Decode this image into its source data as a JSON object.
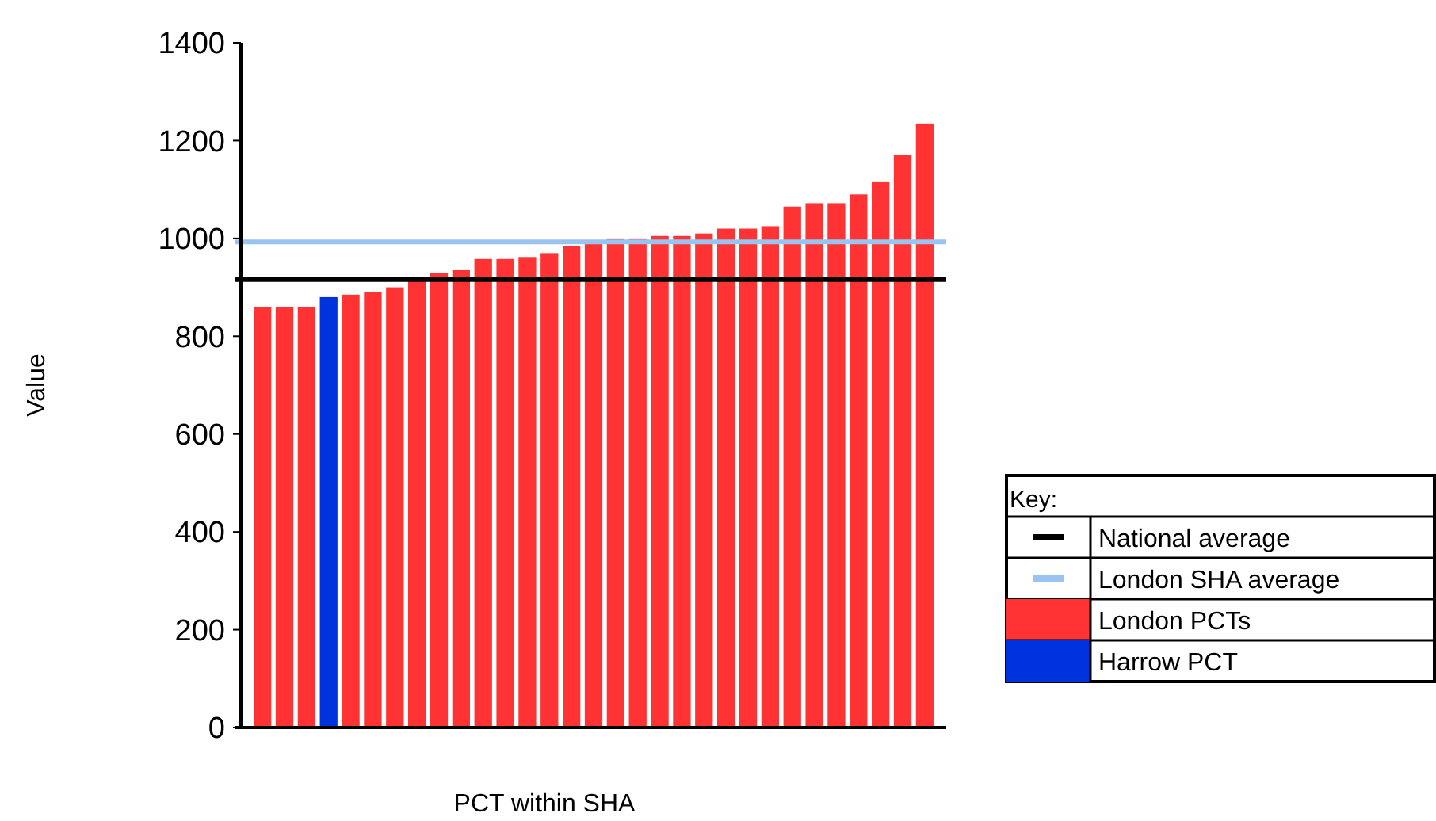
{
  "chart_data": {
    "type": "bar",
    "xlabel": "PCT within SHA",
    "ylabel": "Value",
    "legend_title": "Key:",
    "legend": "right",
    "stacked": true,
    "categories": [
      null,
      null,
      null,
      null,
      null,
      null,
      null,
      null,
      null,
      null,
      null,
      null,
      null,
      null,
      null,
      null,
      null,
      null,
      null,
      null,
      null,
      null,
      null,
      null,
      null,
      null,
      null,
      null,
      null,
      null,
      null
    ],
    "series": [
      {
        "name": "London PCTs",
        "color": "#ff3333",
        "values": [
          860,
          860,
          860,
          null,
          885,
          890,
          900,
          920,
          930,
          935,
          958,
          958,
          962,
          970,
          985,
          990,
          1000,
          1000,
          1005,
          1005,
          1010,
          1020,
          1020,
          1025,
          1065,
          1072,
          1072,
          1090,
          1115,
          1170,
          1235
        ]
      },
      {
        "name": "Harrow PCT",
        "color": "#0033dd",
        "values": [
          null,
          null,
          null,
          880,
          null,
          null,
          null,
          null,
          null,
          null,
          null,
          null,
          null,
          null,
          null,
          null,
          null,
          null,
          null,
          null,
          null,
          null,
          null,
          null,
          null,
          null,
          null,
          null,
          null,
          null,
          null
        ]
      }
    ],
    "ref_lines": [
      {
        "axis": "y",
        "value": 916,
        "label": "National average",
        "color": "#000000"
      },
      {
        "axis": "y",
        "value": 993,
        "label": "London SHA average",
        "color": "#99c4f0"
      }
    ],
    "ylim": [
      0,
      1400
    ],
    "yticks": [
      0,
      200,
      400,
      600,
      800,
      1000,
      1200,
      1400
    ]
  }
}
